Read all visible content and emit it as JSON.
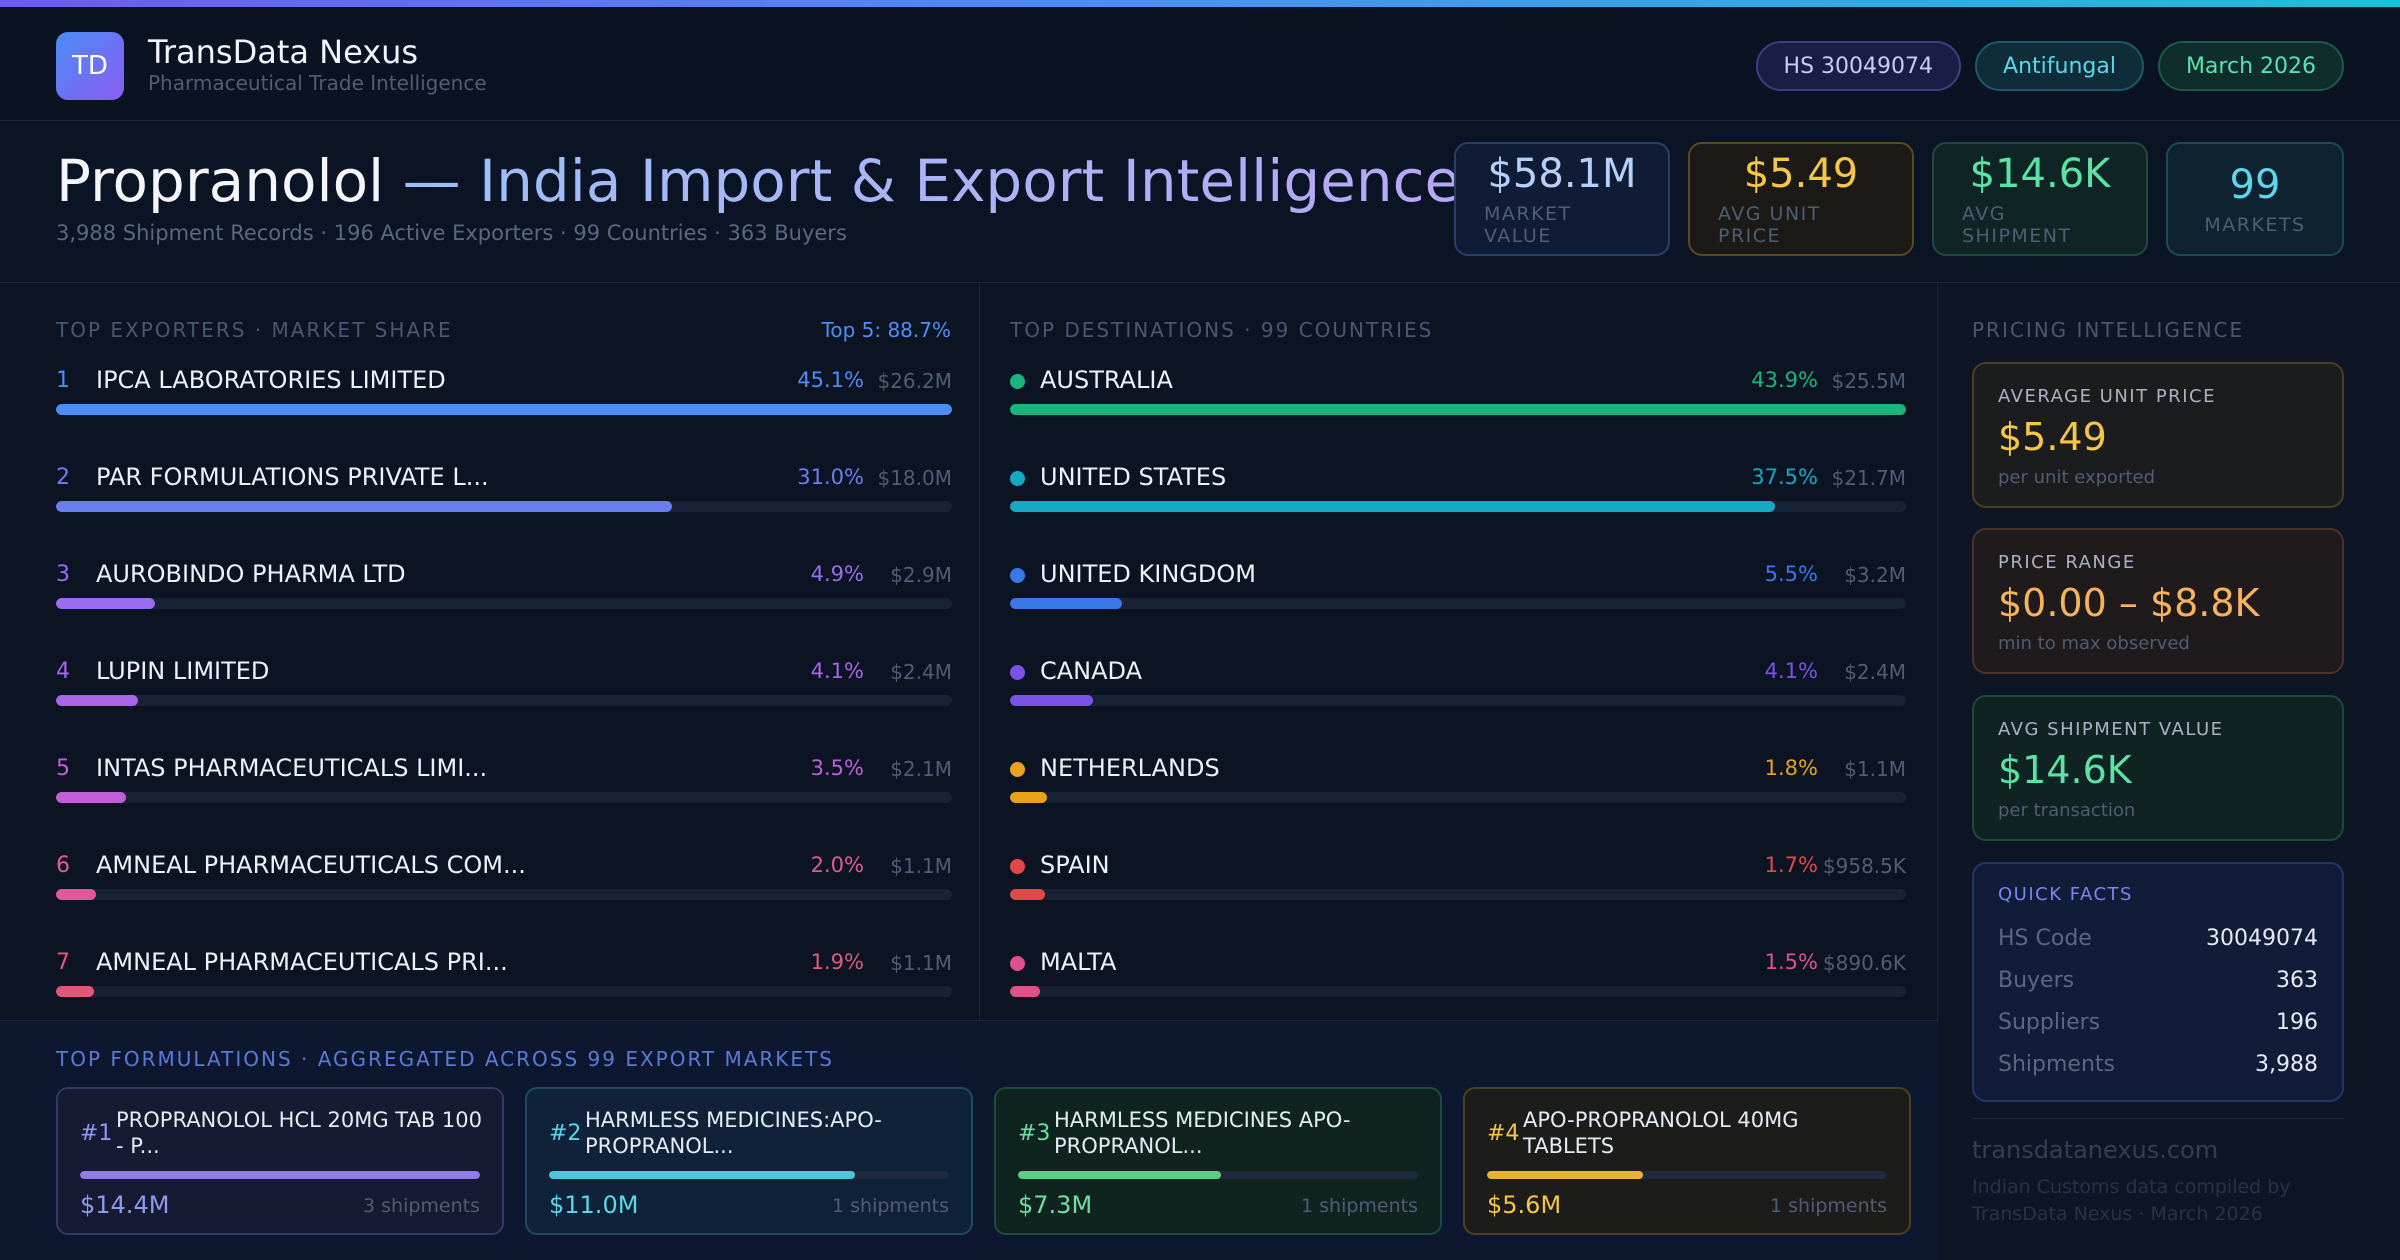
{
  "brand": {
    "initials": "TD",
    "name": "TransData Nexus",
    "subtitle": "Pharmaceutical Trade Intelligence"
  },
  "pills": {
    "hs": "HS 30049074",
    "category": "Antifungal",
    "date": "March 2026"
  },
  "hero": {
    "drug": "Propranolol",
    "title_rest": " — India Import & Export Intelligence",
    "subtitle": "3,988 Shipment Records · 196 Active Exporters · 99 Countries · 363 Buyers"
  },
  "kpis": [
    {
      "value": "$58.1M",
      "label": "MARKET VALUE"
    },
    {
      "value": "$5.49",
      "label": "AVG UNIT PRICE"
    },
    {
      "value": "$14.6K",
      "label": "AVG SHIPMENT"
    },
    {
      "value": "99",
      "label": "MARKETS"
    }
  ],
  "exporters": {
    "title": "TOP EXPORTERS · MARKET SHARE",
    "extra": "Top 5: 88.7%",
    "items": [
      {
        "rank": "1",
        "name": "IPCA LABORATORIES LIMITED",
        "pct": "45.1%",
        "value": "$26.2M",
        "share": 100,
        "color": "#4f8df5"
      },
      {
        "rank": "2",
        "name": "PAR FORMULATIONS PRIVATE L...",
        "pct": "31.0%",
        "value": "$18.0M",
        "share": 68.7,
        "color": "#6b7ef0"
      },
      {
        "rank": "3",
        "name": "AUROBINDO PHARMA LTD",
        "pct": "4.9%",
        "value": "$2.9M",
        "share": 11,
        "color": "#9a6cf0"
      },
      {
        "rank": "4",
        "name": "LUPIN LIMITED",
        "pct": "4.1%",
        "value": "$2.4M",
        "share": 9.2,
        "color": "#a865e8"
      },
      {
        "rank": "5",
        "name": "INTAS PHARMACEUTICALS LIMI...",
        "pct": "3.5%",
        "value": "$2.1M",
        "share": 7.8,
        "color": "#c060d8"
      },
      {
        "rank": "6",
        "name": "AMNEAL PHARMACEUTICALS COM...",
        "pct": "2.0%",
        "value": "$1.1M",
        "share": 4.5,
        "color": "#e05a9a"
      },
      {
        "rank": "7",
        "name": "AMNEAL PHARMACEUTICALS PRI...",
        "pct": "1.9%",
        "value": "$1.1M",
        "share": 4.2,
        "color": "#e05a78"
      }
    ]
  },
  "destinations": {
    "title": "TOP DESTINATIONS · 99 COUNTRIES",
    "items": [
      {
        "name": "AUSTRALIA",
        "pct": "43.9%",
        "value": "$25.5M",
        "share": 100,
        "color": "#19b57e"
      },
      {
        "name": "UNITED STATES",
        "pct": "37.5%",
        "value": "$21.7M",
        "share": 85.4,
        "color": "#16a9c4"
      },
      {
        "name": "UNITED KINGDOM",
        "pct": "5.5%",
        "value": "$3.2M",
        "share": 12.5,
        "color": "#3a78e8"
      },
      {
        "name": "CANADA",
        "pct": "4.1%",
        "value": "$2.4M",
        "share": 9.3,
        "color": "#7c52e6"
      },
      {
        "name": "NETHERLANDS",
        "pct": "1.8%",
        "value": "$1.1M",
        "share": 4.1,
        "color": "#e8a21c"
      },
      {
        "name": "SPAIN",
        "pct": "1.7%",
        "value": "$958.5K",
        "share": 3.9,
        "color": "#e34848"
      },
      {
        "name": "MALTA",
        "pct": "1.5%",
        "value": "$890.6K",
        "share": 3.4,
        "color": "#e0508a"
      }
    ]
  },
  "pricing": {
    "title": "PRICING INTELLIGENCE",
    "cards": [
      {
        "title": "AVERAGE UNIT PRICE",
        "value": "$5.49",
        "sub": "per unit exported"
      },
      {
        "title": "PRICE RANGE",
        "value": "$0.00 – $8.8K",
        "sub": "min to max observed"
      },
      {
        "title": "AVG SHIPMENT VALUE",
        "value": "$14.6K",
        "sub": "per transaction"
      }
    ],
    "quick_facts": {
      "title": "QUICK FACTS",
      "rows": [
        {
          "k": "HS Code",
          "v": "30049074"
        },
        {
          "k": "Buyers",
          "v": "363"
        },
        {
          "k": "Suppliers",
          "v": "196"
        },
        {
          "k": "Shipments",
          "v": "3,988"
        }
      ]
    },
    "site": "transdatanexus.com",
    "footnote": "Indian Customs data compiled by TransData Nexus · March 2026"
  },
  "formulations": {
    "title": "TOP FORMULATIONS · AGGREGATED ACROSS 99 EXPORT MARKETS",
    "items": [
      {
        "num": "#1",
        "name": "PROPRANOLOL HCL 20MG TAB 100 - P...",
        "value": "$14.4M",
        "shipments": "3 shipments",
        "share": 100,
        "color": "#8f7ee8",
        "accent": "#8f9af2"
      },
      {
        "num": "#2",
        "name": "HARMLESS MEDICINES:APO-PROPRANOL...",
        "value": "$11.0M",
        "shipments": "1 shipments",
        "share": 76.4,
        "color": "#4ec6de",
        "accent": "#5bd6ea"
      },
      {
        "num": "#3",
        "name": "HARMLESS MEDICINES APO-PROPRANOL...",
        "value": "$7.3M",
        "shipments": "1 shipments",
        "share": 50.7,
        "color": "#5ccf86",
        "accent": "#6be0a0"
      },
      {
        "num": "#4",
        "name": "APO-PROPRANOLOL 40MG TABLETS",
        "value": "$5.6M",
        "shipments": "1 shipments",
        "share": 38.9,
        "color": "#e8b42c",
        "accent": "#f7c646"
      }
    ]
  }
}
